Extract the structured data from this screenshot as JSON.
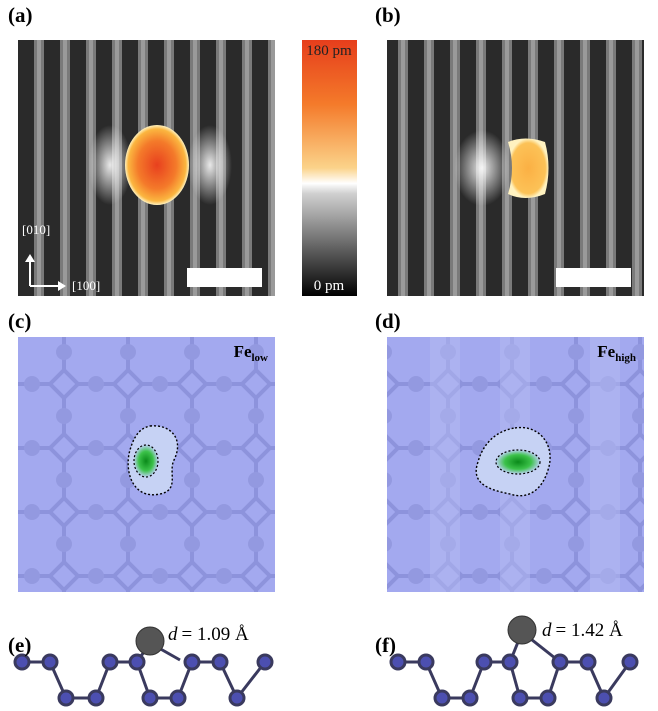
{
  "panels": [
    {
      "label": "(a)"
    },
    {
      "label": "(b)"
    },
    {
      "label": "(c)"
    },
    {
      "label": "(d)"
    },
    {
      "label": "(e)"
    },
    {
      "label": "(f)"
    }
  ],
  "colorbar": {
    "max_label": "180 pm",
    "min_label": "0 pm"
  },
  "directions": {
    "vertical": "[010]",
    "horizontal": "[100]"
  },
  "configurations": [
    {
      "element": "Fe",
      "subscript": "low",
      "symbol": "d",
      "distance": "= 1.09 Å"
    },
    {
      "element": "Fe",
      "subscript": "high",
      "symbol": "d",
      "distance": "= 1.42 Å"
    }
  ]
}
